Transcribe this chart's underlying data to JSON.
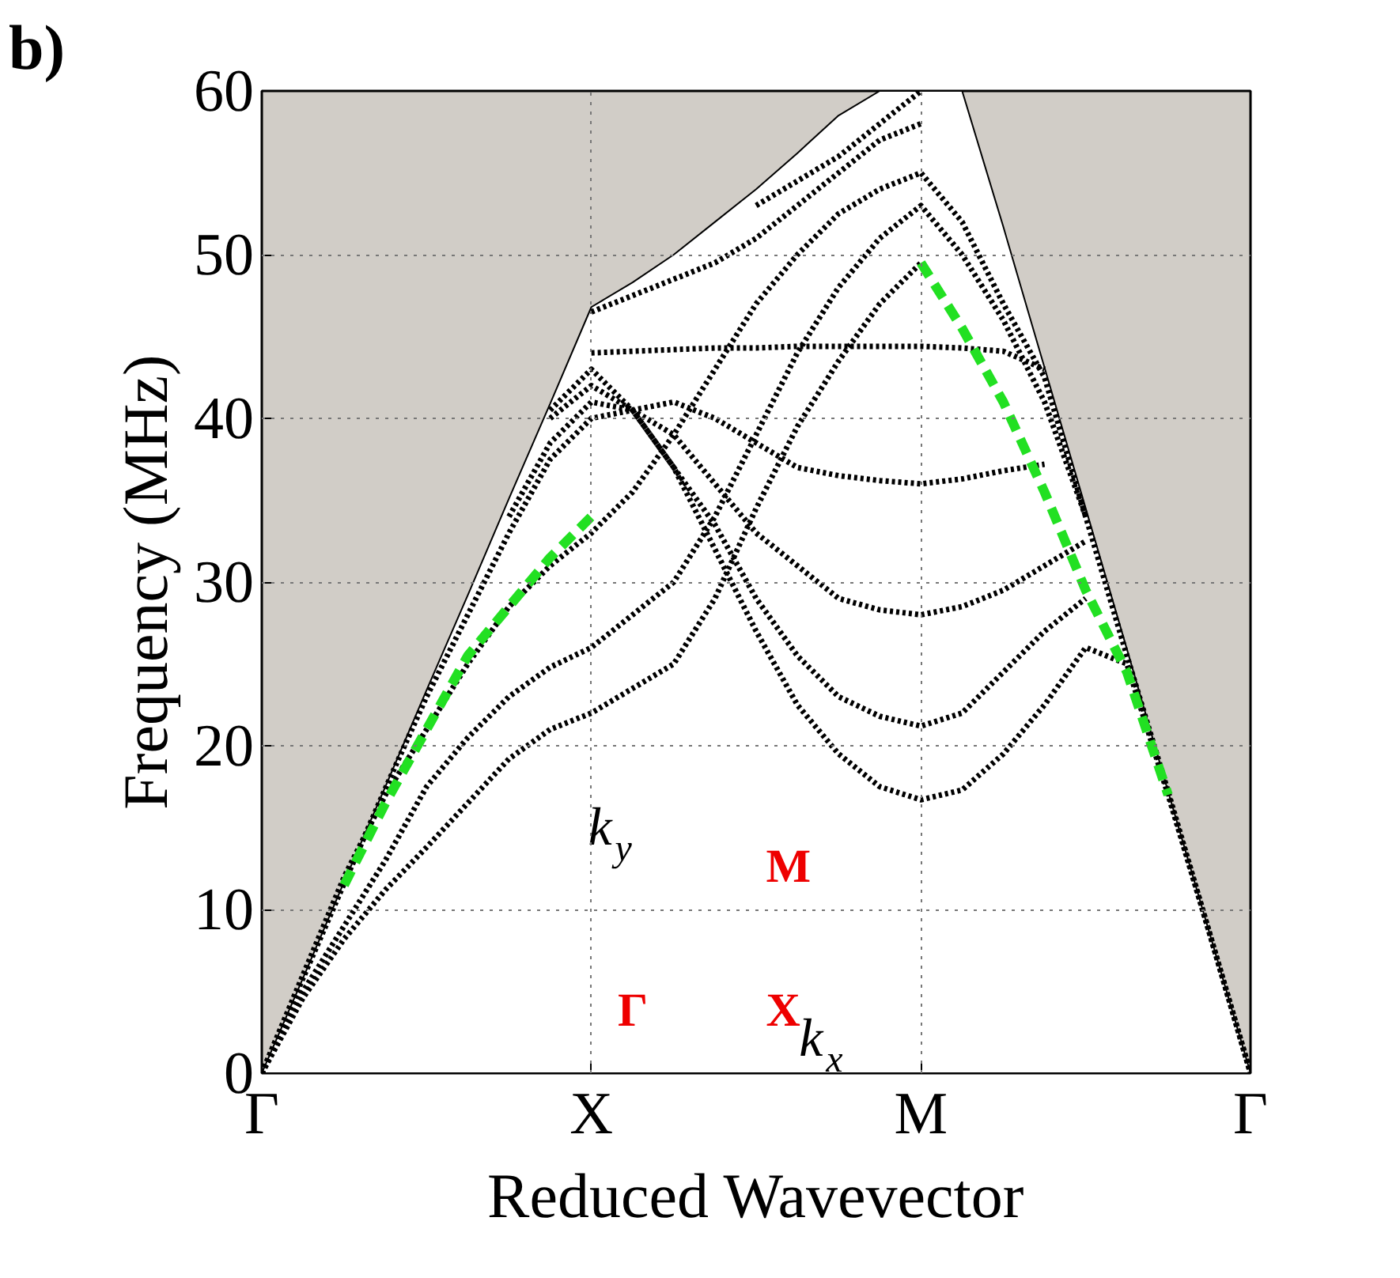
{
  "chart_data": {
    "type": "line",
    "xlabel": "Reduced Wavevector",
    "ylabel": "Frequency (MHz)",
    "categories": [
      "Γ",
      null,
      null,
      null,
      null,
      null,
      null,
      null,
      "X",
      null,
      null,
      null,
      null,
      null,
      null,
      null,
      "M",
      null,
      null,
      null,
      null,
      null,
      null,
      null,
      "Γ"
    ],
    "ylim": [
      0,
      60
    ],
    "yticks": [
      0,
      10,
      20,
      30,
      40,
      50,
      60
    ],
    "grid": true,
    "annotations": [
      "b)",
      "k$_{y}$",
      "M",
      "Γ",
      "X",
      "k$_{x}$"
    ],
    "series": [
      {
        "type": "area",
        "color": "#ffffff",
        "values": [
          0,
          5.8,
          11.7,
          17.5,
          23.4,
          29.2,
          35.1,
          40.9,
          46.8,
          48.3,
          50,
          52,
          54,
          56.2,
          58.5,
          60,
          60,
          60,
          51.7,
          43.1,
          34.5,
          25.9,
          17.2,
          8.6,
          0
        ]
      },
      {
        "color": "#000000",
        "line_style": "dotted",
        "values": [
          0,
          4.6,
          8.2,
          11.2,
          13.8,
          16.5,
          19.2,
          21,
          22,
          23.5,
          25,
          29,
          34.5,
          39.5,
          43.5,
          47,
          49.5,
          null,
          null,
          null,
          null,
          null,
          null,
          null,
          null
        ]
      },
      {
        "color": "#000000",
        "line_style": "dotted",
        "values": [
          0,
          5,
          9,
          13,
          17.5,
          20.5,
          23,
          24.8,
          26,
          28,
          30,
          34,
          39,
          44,
          48,
          51,
          53,
          50,
          46,
          41,
          34,
          25.5,
          17.2,
          8.6,
          0
        ]
      },
      {
        "color": "#000000",
        "line_style": "dotted",
        "values": [
          0,
          6,
          12,
          17,
          21,
          25,
          28.5,
          31,
          33,
          35.5,
          39,
          43,
          47,
          50,
          52.5,
          54,
          55,
          52,
          47,
          42.5,
          34,
          null,
          null,
          null,
          null
        ]
      },
      {
        "color": "#000000",
        "line_style": "dotted",
        "values": [
          0,
          5.8,
          11.6,
          17.4,
          23,
          28,
          33,
          37.5,
          40,
          40.5,
          41,
          40,
          38.5,
          37,
          36.5,
          36.2,
          36,
          36.3,
          36.8,
          37.2,
          null,
          null,
          null,
          null,
          null
        ]
      },
      {
        "color": "#000000",
        "line_style": "dotted",
        "values": [
          null,
          null,
          null,
          null,
          null,
          null,
          34,
          38.5,
          41,
          40.5,
          39,
          36,
          33,
          31,
          29,
          28.3,
          28,
          28.5,
          29.5,
          31,
          32.5,
          null,
          null,
          null,
          null
        ]
      },
      {
        "color": "#000000",
        "line_style": "dotted",
        "values": [
          null,
          null,
          null,
          null,
          null,
          null,
          null,
          40,
          42,
          40.5,
          37,
          33.5,
          29,
          25.5,
          23,
          21.8,
          21.2,
          22,
          24.5,
          27,
          29,
          null,
          null,
          null,
          null
        ]
      },
      {
        "color": "#000000",
        "line_style": "dotted",
        "values": [
          null,
          null,
          null,
          null,
          null,
          null,
          null,
          40.5,
          43,
          40.5,
          37,
          32,
          27,
          22.5,
          19.5,
          17.5,
          16.7,
          17.3,
          19.5,
          22.5,
          26,
          25,
          17,
          8.6,
          0
        ]
      },
      {
        "color": "#000000",
        "line_style": "dotted",
        "values": [
          null,
          null,
          null,
          null,
          null,
          null,
          null,
          null,
          44,
          44.1,
          44.2,
          44.3,
          44.3,
          44.4,
          44.4,
          44.4,
          44.4,
          44.3,
          44.1,
          43,
          null,
          null,
          null,
          null,
          null
        ]
      },
      {
        "color": "#000000",
        "line_style": "dotted",
        "values": [
          null,
          null,
          null,
          null,
          null,
          null,
          null,
          null,
          46.5,
          47.5,
          48.5,
          49.5,
          51,
          53,
          55,
          57,
          58,
          null,
          null,
          null,
          null,
          null,
          null,
          null,
          null
        ]
      },
      {
        "color": "#000000",
        "line_style": "dotted",
        "values": [
          null,
          null,
          null,
          null,
          null,
          null,
          null,
          null,
          null,
          null,
          null,
          null,
          53,
          54.5,
          56,
          58,
          60,
          null,
          null,
          null,
          null,
          null,
          null,
          null,
          null
        ]
      },
      {
        "color": "#22e022",
        "line_style": "dashed",
        "values": [
          null,
          null,
          11.5,
          16.5,
          21,
          25.5,
          28.5,
          31.5,
          34,
          null,
          null,
          null,
          null,
          null,
          null,
          null,
          null,
          null,
          null,
          null,
          null,
          null,
          null,
          null,
          null
        ]
      },
      {
        "color": "#22e022",
        "line_style": "dashed",
        "values": [
          null,
          null,
          null,
          null,
          null,
          null,
          null,
          null,
          null,
          null,
          null,
          null,
          null,
          null,
          null,
          null,
          49.5,
          45.5,
          41,
          35.5,
          29.5,
          24.5,
          17,
          null,
          null
        ]
      }
    ]
  }
}
